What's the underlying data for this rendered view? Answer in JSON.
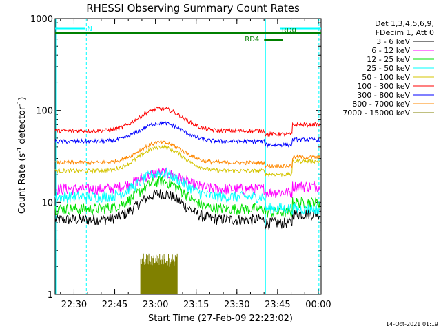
{
  "chart_data": {
    "type": "line",
    "title": "RHESSI Observing Summary Count Rates",
    "xlabel": "Start Time (27-Feb-09 22:23:02)",
    "ylabel_main": "Count Rate (s",
    "ylabel_sup1": "-1",
    "ylabel_mid": " detector",
    "ylabel_sup2": "-1",
    "ylabel_end": ")",
    "ylog": true,
    "xlim_minutes": [
      0,
      98
    ],
    "ylim": [
      1,
      1000
    ],
    "x_ticks": [
      {
        "label": "22:30",
        "minutes": 6.97
      },
      {
        "label": "22:45",
        "minutes": 21.97
      },
      {
        "label": "23:00",
        "minutes": 36.97
      },
      {
        "label": "23:15",
        "minutes": 51.97
      },
      {
        "label": "23:30",
        "minutes": 66.97
      },
      {
        "label": "23:45",
        "minutes": 81.97
      },
      {
        "label": "00:00",
        "minutes": 96.97
      }
    ],
    "y_ticks": [
      {
        "label": "1",
        "value": 1
      },
      {
        "label": "10",
        "value": 10
      },
      {
        "label": "100",
        "value": 100
      },
      {
        "label": "1000",
        "value": 1000
      }
    ],
    "legend_header": [
      "Det 1,3,4,5,6,9,",
      "FDecim 1, Att 0"
    ],
    "series": [
      {
        "name": "3 - 6 keV",
        "color": "#000000",
        "baseline": 6.5,
        "peak": 12.5,
        "after": 7.5
      },
      {
        "name": "6 - 12 keV",
        "color": "#ff00ff",
        "baseline": 14.0,
        "peak": 21.0,
        "after": 15.0
      },
      {
        "name": "12 - 25 keV",
        "color": "#00e000",
        "baseline": 8.5,
        "peak": 17.0,
        "after": 10.0
      },
      {
        "name": "25 - 50 keV",
        "color": "#00ffff",
        "baseline": 11.5,
        "peak": 21.0,
        "after": 8.5
      },
      {
        "name": "50 - 100 keV",
        "color": "#d4c400",
        "baseline": 22.0,
        "peak": 40.0,
        "after": 28.0
      },
      {
        "name": "100 - 300 keV",
        "color": "#ff0000",
        "baseline": 60.0,
        "peak": 105.0,
        "after": 70.0
      },
      {
        "name": "300 - 800 keV",
        "color": "#0000ff",
        "baseline": 46.0,
        "peak": 73.0,
        "after": 48.0
      },
      {
        "name": "800 - 7000 keV",
        "color": "#ff8800",
        "baseline": 27.0,
        "peak": 45.0,
        "after": 31.0
      },
      {
        "name": "7000 - 15000 keV",
        "color": "#808000",
        "baseline": 1,
        "peak": 2.6,
        "after": 1
      }
    ],
    "flag_bars": [
      {
        "label": "N",
        "color": "#00ffff",
        "x_start_minutes": 0,
        "x_end_minutes": 11,
        "x2_start_minutes": 83,
        "x2_end_minutes": 98,
        "level": "top"
      },
      {
        "label": "RD0",
        "color": "#008000",
        "x_start_minutes": 0,
        "x_end_minutes": 98,
        "level": "second"
      },
      {
        "label": "RD4",
        "color": "#008000",
        "x_start_minutes": 77,
        "x_end_minutes": 84,
        "level": "third"
      }
    ],
    "vertical_markers_minutes": [
      11.5,
      77.5,
      97.2
    ],
    "legend_placement": "right",
    "grid": false
  },
  "footer": {
    "timestamp": "14-Oct-2021 01:19"
  }
}
